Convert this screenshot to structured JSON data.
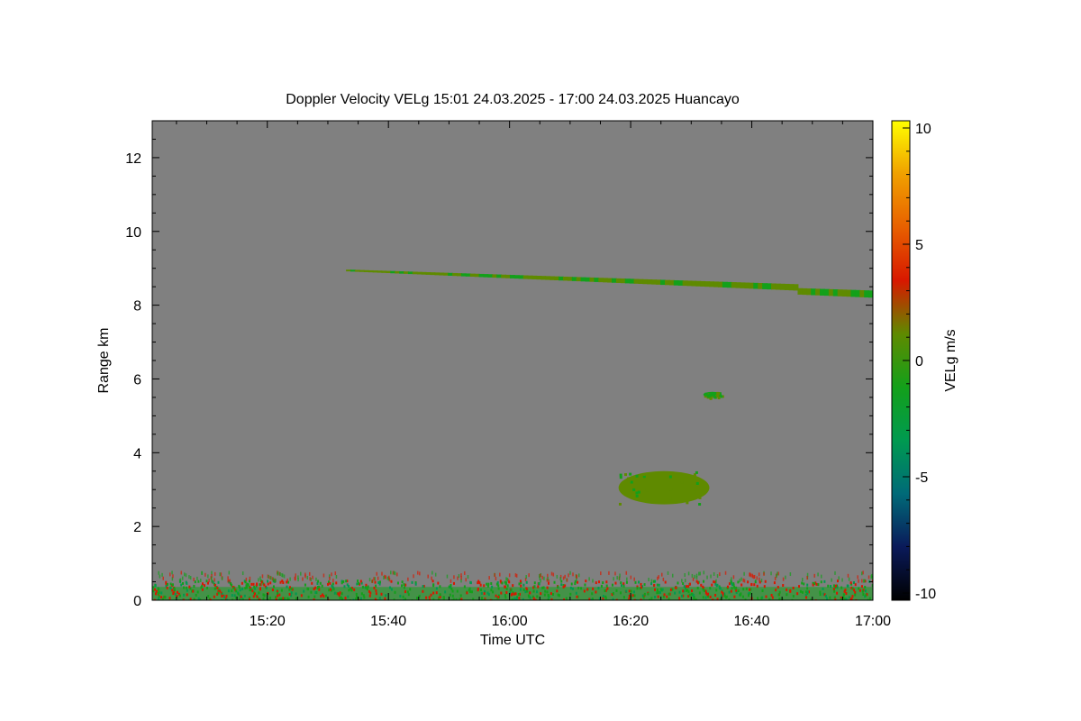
{
  "chart_data": {
    "type": "heatmap",
    "title": "Doppler Velocity VELg   15:01 24.03.2025 - 17:00 24.03.2025 Huancayo",
    "xlabel": "Time UTC",
    "ylabel": "Range km",
    "x_ticks": [
      "15:20",
      "15:40",
      "16:00",
      "16:20",
      "16:40",
      "17:00"
    ],
    "x_tick_minutes": [
      20,
      40,
      60,
      80,
      100,
      120
    ],
    "xlim_minutes": [
      1,
      120
    ],
    "y_ticks": [
      0,
      2,
      4,
      6,
      8,
      10,
      12
    ],
    "ylim": [
      0,
      13
    ],
    "background_color": "#808080",
    "colorbar": {
      "label": "VELg m/s",
      "ticks": [
        10,
        5,
        0,
        -5,
        -10
      ],
      "range": [
        -10,
        10
      ],
      "colors": [
        "#000000",
        "#0a1a5a",
        "#006a78",
        "#009a50",
        "#13a01a",
        "#5f8a00",
        "#d81800",
        "#e86000",
        "#f0a000",
        "#ffff00"
      ]
    },
    "features": [
      {
        "name": "boundary-layer-returns",
        "x_start": 1,
        "x_end": 120,
        "y_min": 0.0,
        "y_max": 0.8,
        "velocity": -1
      },
      {
        "name": "cloud-layer-high",
        "x_start": 33,
        "x_end": 120,
        "y_min": 8.3,
        "y_max": 9.0,
        "velocity": 0.5
      },
      {
        "name": "cloud-patch-mid",
        "x_start": 78,
        "x_end": 93,
        "y_min": 2.6,
        "y_max": 3.5,
        "velocity": 0
      },
      {
        "name": "small-echo",
        "x_start": 92,
        "x_end": 95,
        "y_min": 5.5,
        "y_max": 5.65,
        "velocity": -1
      }
    ]
  }
}
